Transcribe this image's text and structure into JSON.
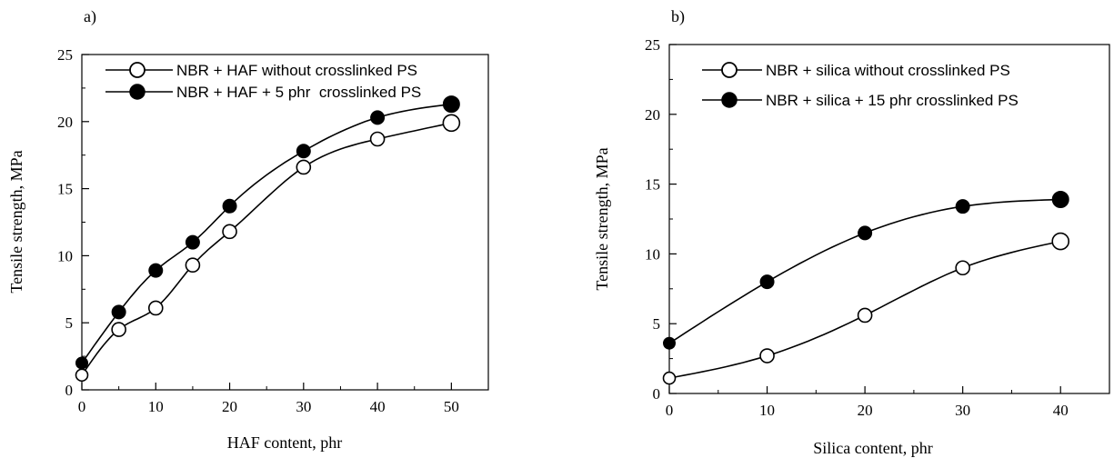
{
  "chart_data": [
    {
      "type": "line",
      "panel_label": "a)",
      "xlabel": "HAF content, phr",
      "ylabel": "Tensile strength, MPa",
      "xlim": [
        0,
        55
      ],
      "ylim": [
        0,
        25
      ],
      "xticks": [
        0,
        10,
        20,
        30,
        40,
        50
      ],
      "yticks": [
        0,
        5,
        10,
        15,
        20,
        25
      ],
      "legend_position": "top-left",
      "grid": false,
      "series": [
        {
          "name": "NBR + HAF without crosslinked PS",
          "marker": "open-circle",
          "x": [
            0,
            5,
            10,
            15,
            20,
            30,
            40,
            50
          ],
          "y": [
            1.1,
            4.5,
            6.1,
            9.3,
            11.8,
            16.6,
            18.7,
            19.9
          ]
        },
        {
          "name": "NBR + HAF + 5 phr  crosslinked PS",
          "marker": "filled-circle",
          "x": [
            0,
            5,
            10,
            15,
            20,
            30,
            40,
            50
          ],
          "y": [
            2.0,
            5.8,
            8.9,
            11.0,
            13.7,
            17.8,
            20.3,
            21.3
          ]
        }
      ]
    },
    {
      "type": "line",
      "panel_label": "b)",
      "xlabel": "Silica content, phr",
      "ylabel": "Tensile strength, MPa",
      "xlim": [
        0,
        45
      ],
      "ylim": [
        0,
        25
      ],
      "xticks": [
        0,
        10,
        20,
        30,
        40
      ],
      "yticks": [
        0,
        5,
        10,
        15,
        20,
        25
      ],
      "legend_position": "top-left",
      "grid": false,
      "series": [
        {
          "name": "NBR + silica without crosslinked PS",
          "marker": "open-circle",
          "x": [
            0,
            10,
            20,
            30,
            40
          ],
          "y": [
            1.1,
            2.7,
            5.6,
            9.0,
            10.9
          ]
        },
        {
          "name": "NBR + silica + 15 phr crosslinked PS",
          "marker": "filled-circle",
          "x": [
            0,
            10,
            20,
            30,
            40
          ],
          "y": [
            3.6,
            8.0,
            11.5,
            13.4,
            13.9
          ]
        }
      ]
    }
  ]
}
